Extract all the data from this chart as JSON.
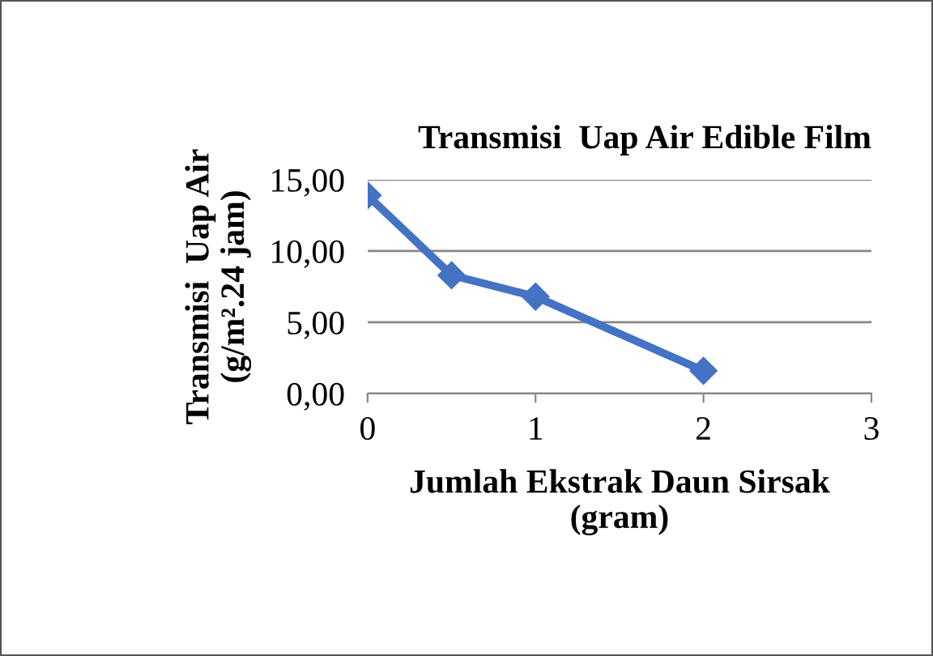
{
  "chart_data": {
    "type": "line",
    "title": "Transmisi  Uap Air Edible Film",
    "xlabel": "Jumlah Ekstrak Daun Sirsak\n(gram)",
    "ylabel": "Transmisi  Uap Air\n(g/m².24 jam)",
    "series": [
      {
        "color": "#4472c4",
        "x": [
          0,
          0.5,
          1,
          2
        ],
        "values": [
          13.9,
          8.3,
          6.8,
          1.6
        ]
      }
    ],
    "xlim": [
      0,
      3
    ],
    "xticks": [
      0,
      1,
      2,
      3
    ],
    "ylim": [
      0,
      15
    ],
    "yticks": [
      {
        "value": 0,
        "label": "0,00"
      },
      {
        "value": 5,
        "label": "5,00"
      },
      {
        "value": 10,
        "label": "10,00"
      },
      {
        "value": 15,
        "label": "15,00"
      }
    ],
    "grid": "y",
    "legend": false,
    "marker": "diamond",
    "line_style": "solid"
  }
}
